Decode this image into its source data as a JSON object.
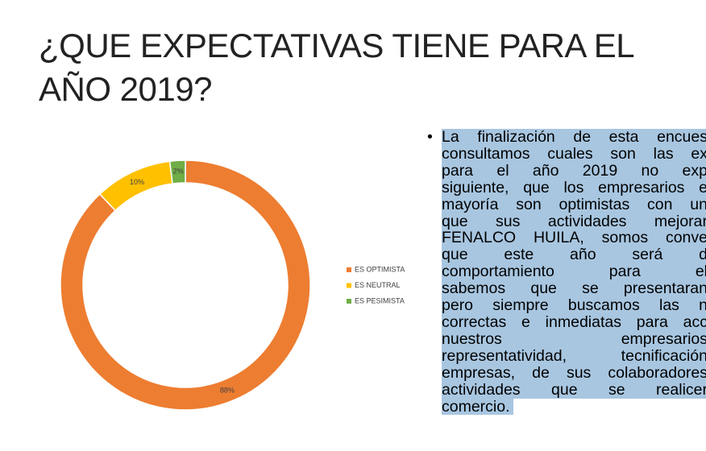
{
  "slide": {
    "title": "¿QUE EXPECTATIVAS TIENE PARA EL AÑO 2019?",
    "bullet_lines": [
      "La finalización de esta encues",
      "consultamos cuales son las ex",
      "para el año 2019 no exp",
      "siguiente, que los empresarios e",
      "mayoría son optimistas con un",
      "que sus actividades mejorar",
      "FENALCO HUILA, somos conve",
      "que este año será d",
      "comportamiento para el",
      "sabemos que se presentaran",
      "pero siempre buscamos las n",
      "correctas e inmediatas para acc",
      "nuestros empresarios",
      "representatividad, tecnificación",
      "empresas, de sus colaboradores",
      "actividades que se realicer",
      "comercio."
    ]
  },
  "chart_data": {
    "type": "donut",
    "categories": [
      "ES OPTIMISTA",
      "ES NEUTRAL",
      "ES PESIMISTA"
    ],
    "values": [
      88,
      10,
      2
    ],
    "value_labels": [
      "88%",
      "10%",
      "2%"
    ],
    "colors": [
      "#ed7d31",
      "#ffc000",
      "#70ad47"
    ],
    "legend": "right"
  }
}
